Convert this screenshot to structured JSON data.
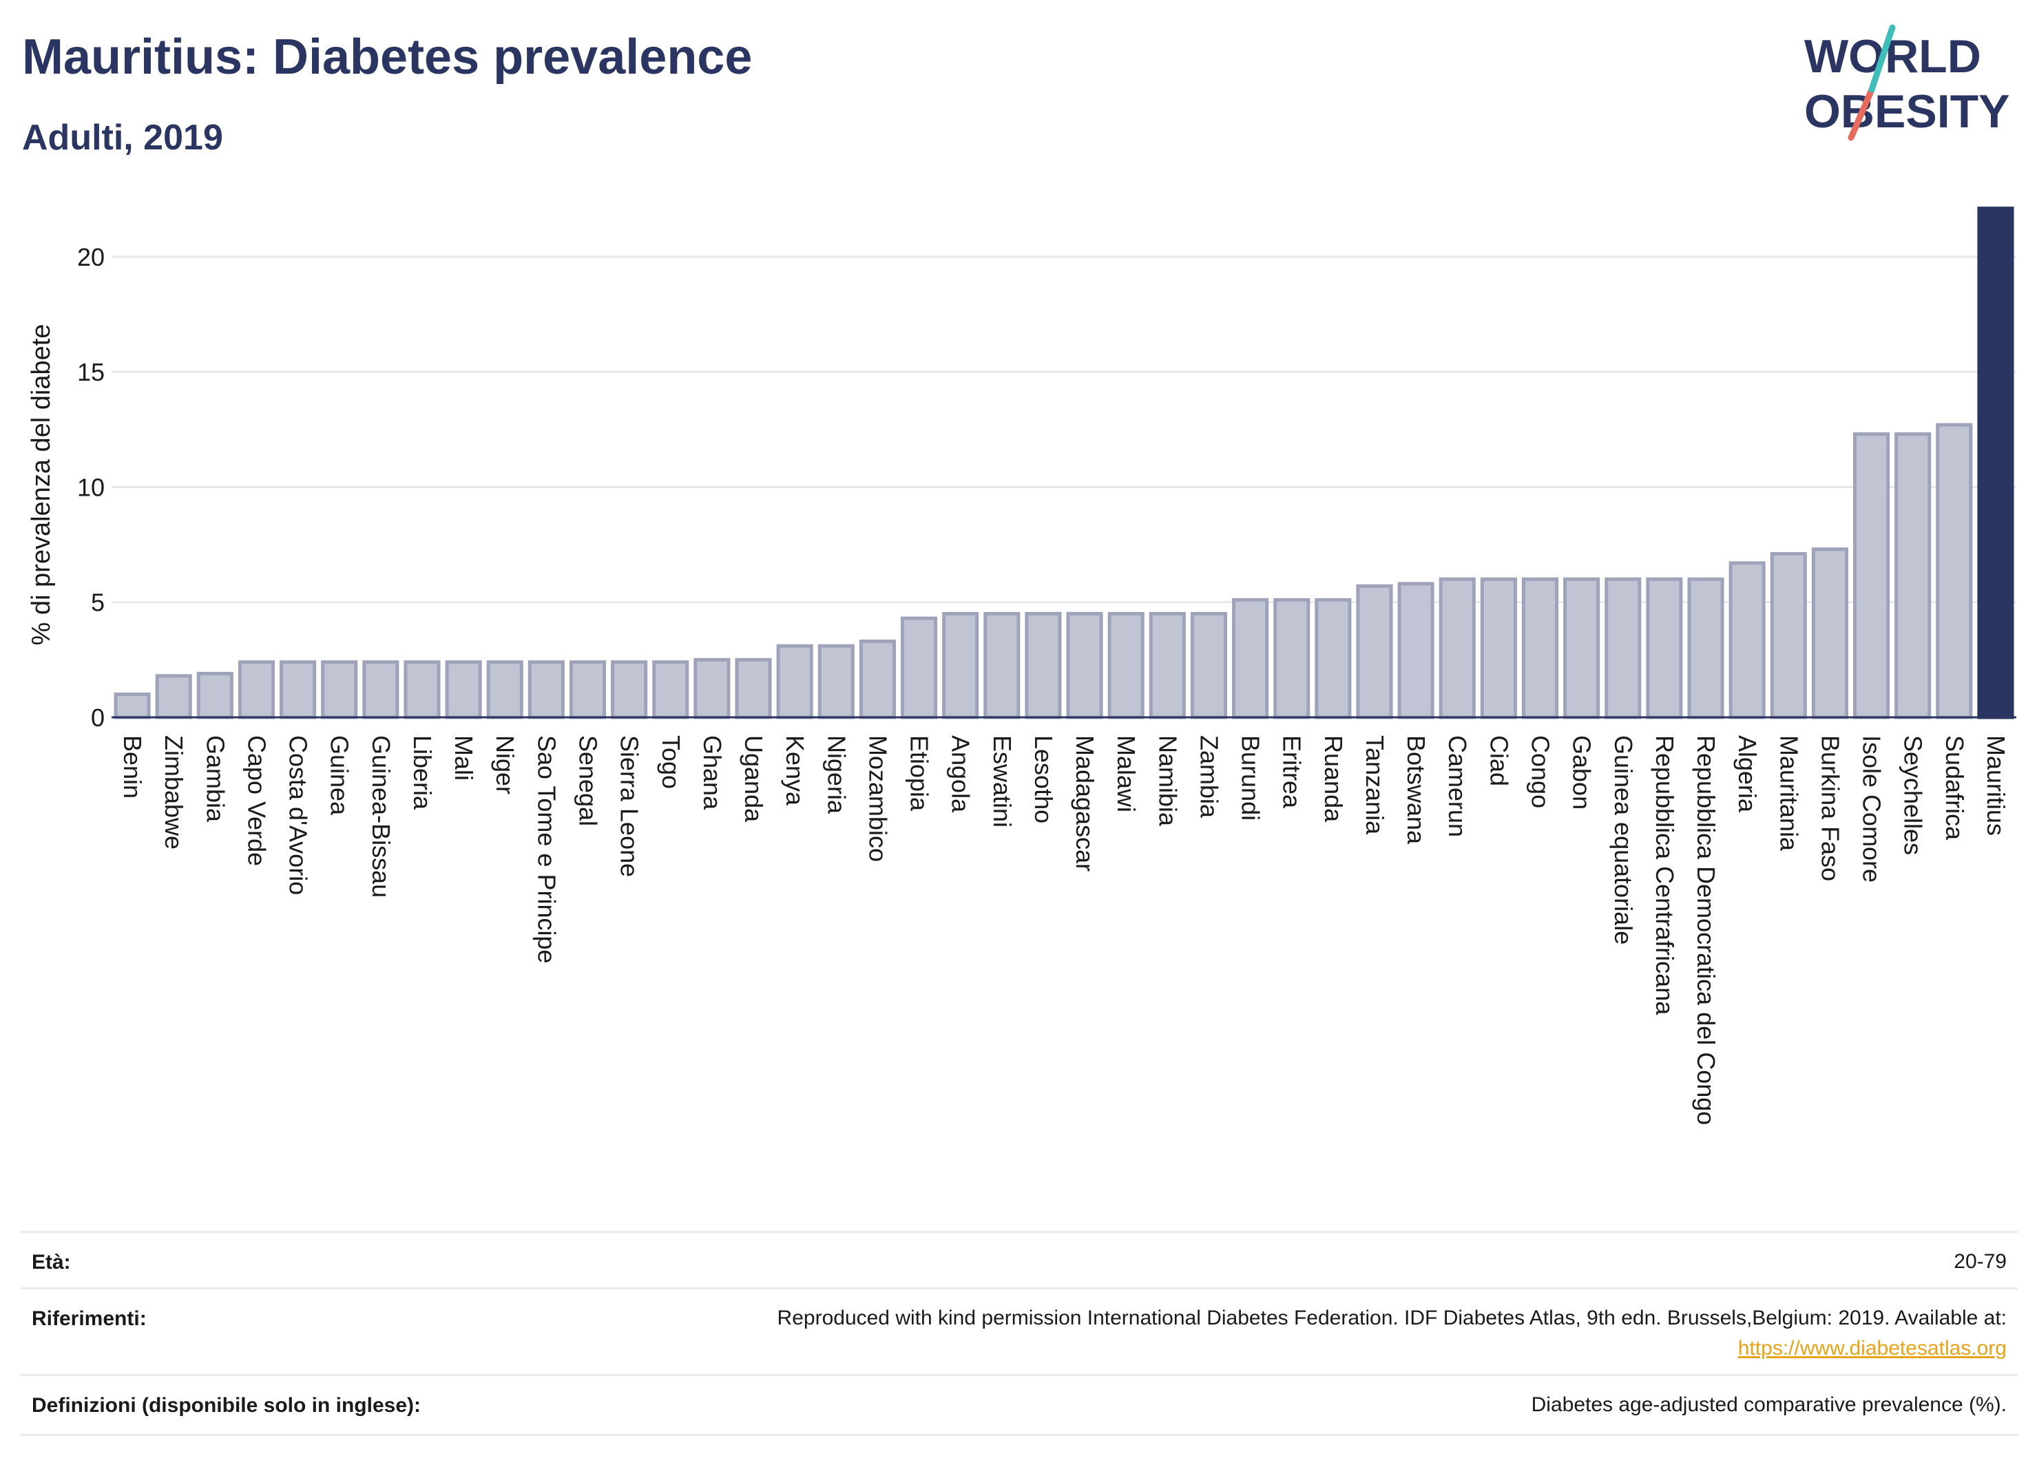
{
  "header": {
    "title": "Mauritius: Diabetes prevalence",
    "subtitle": "Adulti, 2019"
  },
  "logo": {
    "line1": "WORLD",
    "line2": "OBESITY"
  },
  "chart_data": {
    "type": "bar",
    "title": "Mauritius: Diabetes prevalence",
    "subtitle": "Adulti, 2019",
    "ylabel": "% di prevalenza del diabete",
    "xlabel": "",
    "ylim": [
      0,
      22
    ],
    "yticks": [
      0,
      5,
      10,
      15,
      20
    ],
    "grid": true,
    "highlight": "Mauritius",
    "colors": {
      "bar": "#c1c4d2",
      "bar_border": "#9ea3ba",
      "highlight": "#2b3561",
      "grid": "#e6e8ee",
      "axis": "#2b3561"
    },
    "categories": [
      "Benin",
      "Zimbabwe",
      "Gambia",
      "Capo Verde",
      "Costa d'Avorio",
      "Guinea",
      "Guinea-Bissau",
      "Liberia",
      "Mali",
      "Niger",
      "Sao Tome e Principe",
      "Senegal",
      "Sierra Leone",
      "Togo",
      "Ghana",
      "Uganda",
      "Kenya",
      "Nigeria",
      "Mozambico",
      "Etiopia",
      "Angola",
      "Eswatini",
      "Lesotho",
      "Madagascar",
      "Malawi",
      "Namibia",
      "Zambia",
      "Burundi",
      "Eritrea",
      "Ruanda",
      "Tanzania",
      "Botswana",
      "Camerun",
      "Ciad",
      "Congo",
      "Gabon",
      "Guinea equatoriale",
      "Repubblica Centrafricana",
      "Repubblica Democratica del Congo",
      "Algeria",
      "Mauritania",
      "Burkina Faso",
      "Isole Comore",
      "Seychelles",
      "Sudafrica",
      "Mauritius"
    ],
    "values": [
      1.0,
      1.8,
      1.9,
      2.4,
      2.4,
      2.4,
      2.4,
      2.4,
      2.4,
      2.4,
      2.4,
      2.4,
      2.4,
      2.4,
      2.5,
      2.5,
      3.1,
      3.1,
      3.3,
      4.3,
      4.5,
      4.5,
      4.5,
      4.5,
      4.5,
      4.5,
      4.5,
      5.1,
      5.1,
      5.1,
      5.7,
      5.8,
      6.0,
      6.0,
      6.0,
      6.0,
      6.0,
      6.0,
      6.0,
      6.7,
      7.1,
      7.3,
      12.3,
      12.3,
      12.7,
      22.1
    ]
  },
  "footer": {
    "age_label": "Età:",
    "age_value": "20-79",
    "ref_label": "Riferimenti:",
    "ref_value": "Reproduced with kind permission International Diabetes Federation. IDF Diabetes Atlas, 9th edn. Brussels,Belgium: 2019. Available at:",
    "ref_link": "https://www.diabetesatlas.org",
    "def_label": "Definizioni (disponibile solo in inglese):",
    "def_value": "Diabetes age-adjusted comparative prevalence (%)."
  }
}
